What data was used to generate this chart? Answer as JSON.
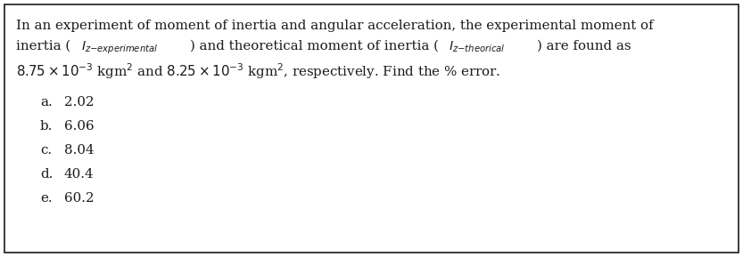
{
  "background_color": "#ffffff",
  "border_color": "#1a1a1a",
  "text_color": "#1a1a1a",
  "font_size": 10.8,
  "figwidth": 8.33,
  "figheight": 2.89,
  "choices": [
    {
      "label": "a.",
      "value": "2.02"
    },
    {
      "label": "b.",
      "value": "6.06"
    },
    {
      "label": "c.",
      "value": "8.04"
    },
    {
      "label": "d.",
      "value": "40.4"
    },
    {
      "label": "e.",
      "value": "60.2"
    }
  ]
}
